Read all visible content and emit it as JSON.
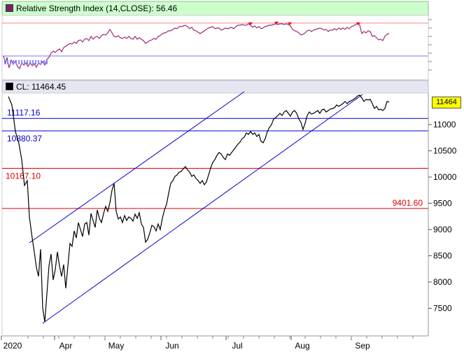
{
  "rsi_panel": {
    "title": "Relative Strength Index (14,CLOSE): 56.46",
    "icon_color": "#7a1f6e",
    "header_bg": "#ccffcc",
    "line_color": "#9b2a7a",
    "overbought_color": "#ff8888",
    "oversold_color": "#7777ff"
  },
  "price_panel": {
    "title": "CL: 11464.45",
    "icon_color": "#000000",
    "header_bg": "#e6e6f2",
    "last_price_badge": "11464",
    "badge_color": "#ffff00"
  },
  "chart_data": {
    "type": "line",
    "series_name": "CL",
    "ylim": [
      7450,
      11800
    ],
    "y_ticks": [
      "11000",
      "10500",
      "10000",
      "9500",
      "9000",
      "8500",
      "8000",
      "7500"
    ],
    "x_labels": [
      "2020",
      "Apr",
      "May",
      "Jun",
      "Jul",
      "Aug",
      "Sep"
    ],
    "horizontal_levels": [
      {
        "label": "11117.16",
        "value": 11117.16,
        "color": "#0000cc"
      },
      {
        "label": "10880.37",
        "value": 10880.37,
        "color": "#0000cc"
      },
      {
        "label": "10167.10",
        "value": 10167.1,
        "color": "#dd0000"
      },
      {
        "label": "9401.60",
        "value": 9401.6,
        "color": "#dd0000"
      }
    ],
    "trend_channel_color": "#0000cc",
    "price_line_color": "#000000"
  }
}
